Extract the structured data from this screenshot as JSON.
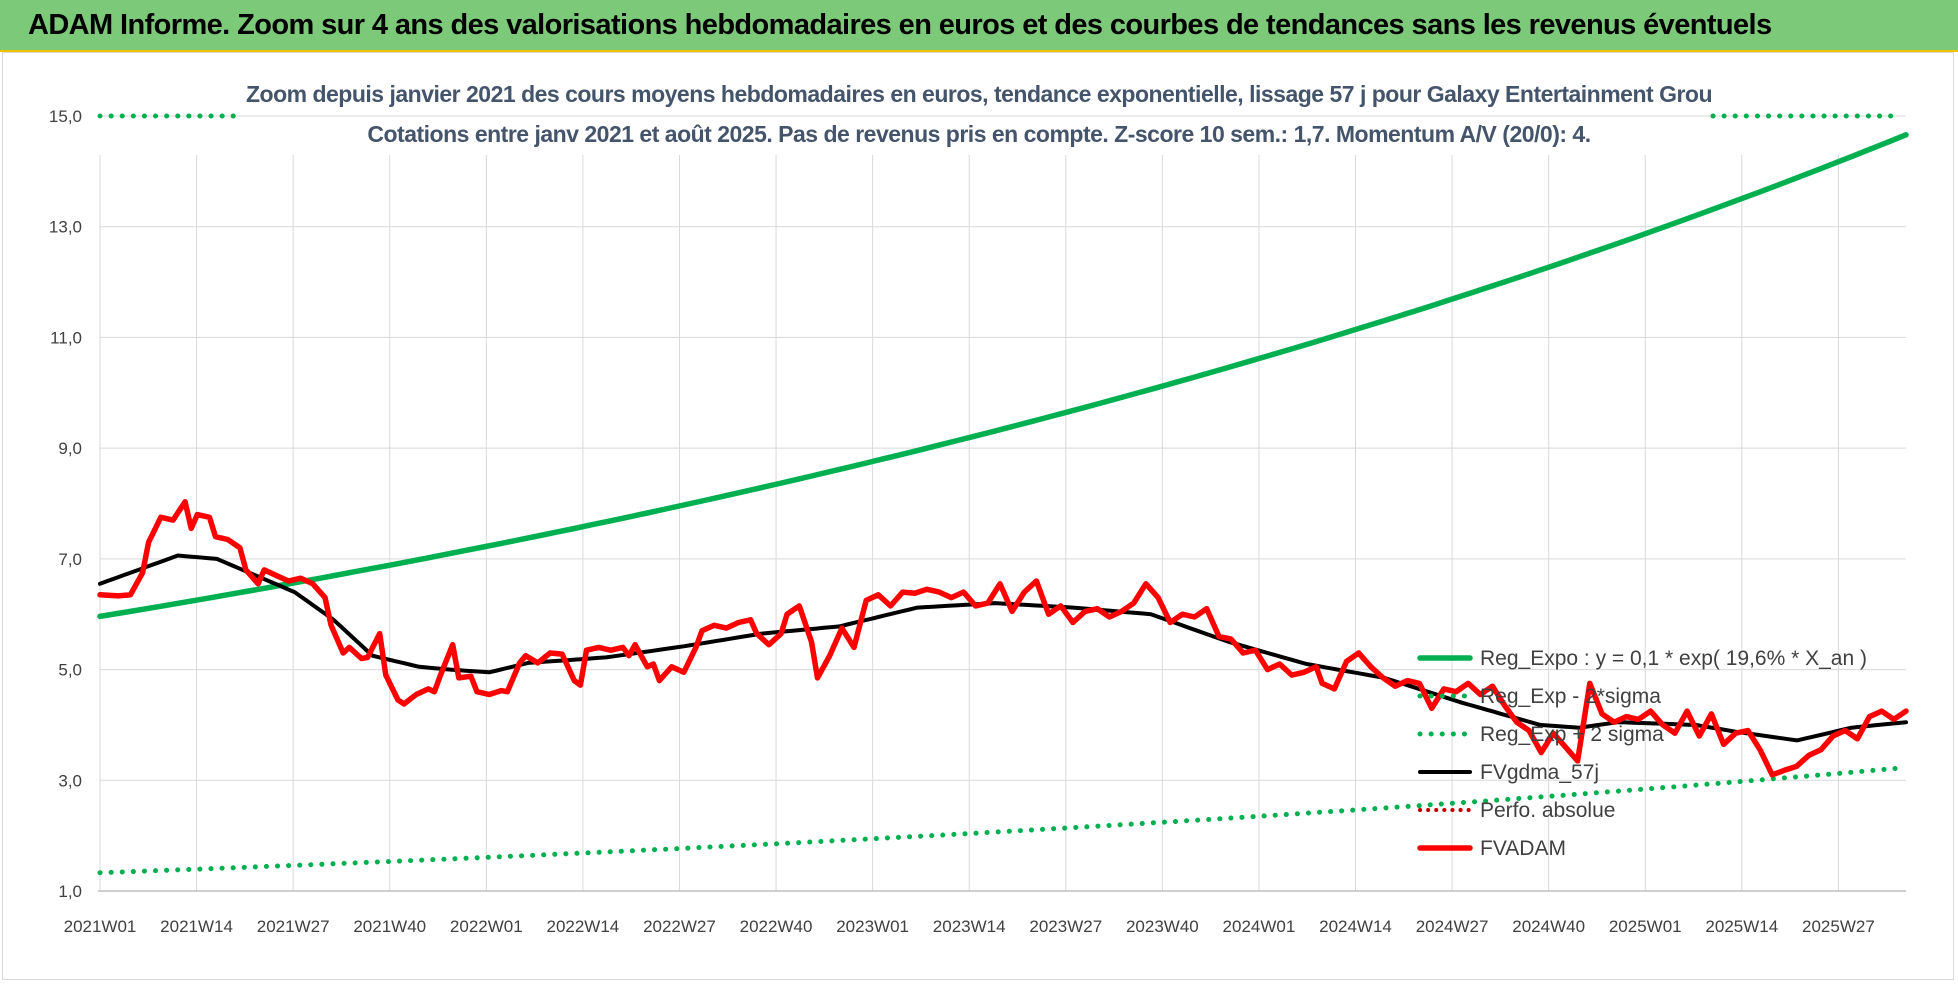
{
  "header": {
    "title": "ADAM Informe. Zoom sur 4 ans des valorisations hebdomadaires en euros et des courbes de tendances sans les revenus éventuels"
  },
  "chart_data": {
    "type": "line",
    "title": "Zoom depuis janvier 2021 des cours moyens hebdomadaires en euros, tendance exponentielle, lissage 57 j pour Galaxy Entertainment Grou",
    "subtitle": "Cotations entre janv 2021 et août 2025.  Pas de revenus pris en compte.  Z-score 10 sem.: 1,7.  Momentum A/V (20/0): 4.",
    "xlabel": "",
    "ylabel": "",
    "ylim": [
      1,
      15
    ],
    "yticks": [
      "1,0",
      "3,0",
      "5,0",
      "7,0",
      "9,0",
      "11,0",
      "13,0",
      "15,0"
    ],
    "xticks": [
      "2021W01",
      "2021W14",
      "2021W27",
      "2021W40",
      "2022W01",
      "2022W14",
      "2022W27",
      "2022W40",
      "2023W01",
      "2023W14",
      "2023W27",
      "2023W40",
      "2024W01",
      "2024W14",
      "2024W27",
      "2024W40",
      "2025W01",
      "2025W14",
      "2025W27"
    ],
    "week_count": 192,
    "grid": "vertical",
    "legend_position": "bottom-right",
    "colors": {
      "green": "#00b050",
      "black": "#000000",
      "red": "#ff0000",
      "dotted_red": "#c00000"
    },
    "series": [
      {
        "name": "Reg_Expo : y = 0,1 * exp( 19,6% *  X_an )",
        "style": "solid-green",
        "keypoints": [
          [
            0,
            5.96
          ],
          [
            40,
            6.85
          ],
          [
            80,
            7.86
          ],
          [
            120,
            9.02
          ],
          [
            160,
            10.38
          ],
          [
            191,
            14.66
          ]
        ]
      },
      {
        "name": "Reg_Exp - 2*sigma",
        "style": "dotted-green",
        "keypoints": [
          [
            0,
            1.33
          ],
          [
            60,
            1.55
          ],
          [
            120,
            2.0
          ],
          [
            160,
            2.5
          ],
          [
            191,
            3.23
          ]
        ]
      },
      {
        "name": "Reg_Exp + 2 sigma",
        "style": "dotted-green",
        "keypoints": [
          [
            0,
            15.0
          ],
          [
            191,
            15.0
          ]
        ]
      },
      {
        "name": "FVgdma_57j",
        "style": "solid-black",
        "keypoints": [
          [
            0,
            6.55
          ],
          [
            10,
            7.06
          ],
          [
            15,
            7.0
          ],
          [
            25,
            6.4
          ],
          [
            30,
            5.9
          ],
          [
            35,
            5.25
          ],
          [
            41,
            5.05
          ],
          [
            45,
            5.0
          ],
          [
            50,
            4.95
          ],
          [
            55,
            5.12
          ],
          [
            65,
            5.22
          ],
          [
            75,
            5.42
          ],
          [
            85,
            5.65
          ],
          [
            95,
            5.78
          ],
          [
            105,
            6.12
          ],
          [
            115,
            6.2
          ],
          [
            125,
            6.12
          ],
          [
            135,
            6.0
          ],
          [
            145,
            5.5
          ],
          [
            155,
            5.1
          ],
          [
            165,
            4.85
          ],
          [
            175,
            4.4
          ],
          [
            185,
            4.0
          ],
          [
            190,
            3.95
          ],
          [
            195,
            4.05
          ],
          [
            205,
            4.0
          ],
          [
            210,
            3.88
          ],
          [
            218,
            3.72
          ],
          [
            225,
            3.95
          ],
          [
            232,
            4.05
          ]
        ]
      },
      {
        "name": "Perfo. absolue",
        "style": "dotted-red",
        "keypoints": []
      },
      {
        "name": "FVADAM",
        "style": "solid-red",
        "keypoints": [
          [
            0,
            6.35
          ],
          [
            3,
            6.33
          ],
          [
            5,
            6.35
          ],
          [
            7,
            6.75
          ],
          [
            8,
            7.3
          ],
          [
            10,
            7.75
          ],
          [
            12,
            7.7
          ],
          [
            14,
            8.03
          ],
          [
            15,
            7.55
          ],
          [
            16,
            7.8
          ],
          [
            18,
            7.75
          ],
          [
            19,
            7.4
          ],
          [
            21,
            7.35
          ],
          [
            23,
            7.2
          ],
          [
            24,
            6.8
          ],
          [
            26,
            6.55
          ],
          [
            27,
            6.8
          ],
          [
            29,
            6.7
          ],
          [
            31,
            6.6
          ],
          [
            33,
            6.65
          ],
          [
            35,
            6.55
          ],
          [
            37,
            6.3
          ],
          [
            38,
            5.8
          ],
          [
            40,
            5.3
          ],
          [
            41,
            5.4
          ],
          [
            43,
            5.2
          ],
          [
            44,
            5.22
          ],
          [
            46,
            5.65
          ],
          [
            47,
            4.9
          ],
          [
            49,
            4.45
          ],
          [
            50,
            4.38
          ],
          [
            52,
            4.55
          ],
          [
            54,
            4.65
          ],
          [
            55,
            4.6
          ],
          [
            56,
            4.9
          ],
          [
            58,
            5.45
          ],
          [
            59,
            4.85
          ],
          [
            61,
            4.88
          ],
          [
            62,
            4.6
          ],
          [
            64,
            4.55
          ],
          [
            66,
            4.62
          ],
          [
            67,
            4.6
          ],
          [
            69,
            5.12
          ],
          [
            70,
            5.25
          ],
          [
            72,
            5.12
          ],
          [
            74,
            5.3
          ],
          [
            76,
            5.28
          ],
          [
            78,
            4.8
          ],
          [
            79,
            4.72
          ],
          [
            80,
            5.35
          ],
          [
            82,
            5.4
          ],
          [
            84,
            5.35
          ],
          [
            86,
            5.4
          ],
          [
            87,
            5.25
          ],
          [
            88,
            5.45
          ],
          [
            90,
            5.05
          ],
          [
            91,
            5.1
          ],
          [
            92,
            4.8
          ],
          [
            94,
            5.05
          ],
          [
            96,
            4.95
          ],
          [
            98,
            5.4
          ],
          [
            99,
            5.7
          ],
          [
            101,
            5.8
          ],
          [
            103,
            5.75
          ],
          [
            105,
            5.85
          ],
          [
            107,
            5.9
          ],
          [
            108,
            5.65
          ],
          [
            110,
            5.45
          ],
          [
            112,
            5.65
          ],
          [
            113,
            6.0
          ],
          [
            115,
            6.15
          ],
          [
            117,
            5.5
          ],
          [
            118,
            4.85
          ],
          [
            120,
            5.25
          ],
          [
            122,
            5.75
          ],
          [
            124,
            5.4
          ],
          [
            126,
            6.25
          ],
          [
            128,
            6.35
          ],
          [
            130,
            6.15
          ],
          [
            132,
            6.4
          ],
          [
            134,
            6.38
          ],
          [
            136,
            6.45
          ],
          [
            138,
            6.4
          ],
          [
            140,
            6.3
          ],
          [
            142,
            6.4
          ],
          [
            144,
            6.15
          ],
          [
            146,
            6.2
          ],
          [
            148,
            6.55
          ],
          [
            150,
            6.05
          ],
          [
            152,
            6.4
          ],
          [
            154,
            6.6
          ],
          [
            156,
            6.0
          ],
          [
            158,
            6.15
          ],
          [
            160,
            5.85
          ],
          [
            162,
            6.05
          ],
          [
            164,
            6.1
          ],
          [
            166,
            5.95
          ],
          [
            168,
            6.05
          ],
          [
            170,
            6.2
          ],
          [
            172,
            6.55
          ],
          [
            174,
            6.3
          ],
          [
            176,
            5.85
          ],
          [
            178,
            6.0
          ],
          [
            180,
            5.95
          ],
          [
            182,
            6.1
          ],
          [
            184,
            5.6
          ],
          [
            186,
            5.55
          ],
          [
            188,
            5.3
          ],
          [
            190,
            5.35
          ],
          [
            192,
            5.0
          ],
          [
            194,
            5.1
          ],
          [
            196,
            4.9
          ],
          [
            198,
            4.95
          ],
          [
            200,
            5.05
          ],
          [
            201,
            4.75
          ],
          [
            203,
            4.65
          ],
          [
            205,
            5.15
          ],
          [
            207,
            5.3
          ],
          [
            209,
            5.05
          ],
          [
            211,
            4.85
          ],
          [
            213,
            4.7
          ],
          [
            215,
            4.8
          ],
          [
            217,
            4.75
          ],
          [
            219,
            4.3
          ],
          [
            221,
            4.65
          ],
          [
            223,
            4.6
          ],
          [
            225,
            4.75
          ],
          [
            227,
            4.55
          ],
          [
            229,
            4.7
          ],
          [
            231,
            4.35
          ],
          [
            233,
            4.05
          ],
          [
            235,
            3.9
          ],
          [
            237,
            3.5
          ],
          [
            239,
            3.85
          ],
          [
            241,
            3.6
          ],
          [
            243,
            3.35
          ],
          [
            245,
            4.75
          ],
          [
            247,
            4.2
          ],
          [
            249,
            4.05
          ],
          [
            251,
            4.15
          ],
          [
            253,
            4.1
          ],
          [
            255,
            4.25
          ],
          [
            257,
            4.0
          ],
          [
            259,
            3.85
          ],
          [
            261,
            4.25
          ],
          [
            263,
            3.8
          ],
          [
            265,
            4.2
          ],
          [
            267,
            3.65
          ],
          [
            269,
            3.85
          ],
          [
            271,
            3.9
          ],
          [
            273,
            3.55
          ],
          [
            275,
            3.1
          ],
          [
            277,
            3.18
          ],
          [
            279,
            3.25
          ],
          [
            281,
            3.45
          ],
          [
            283,
            3.55
          ],
          [
            285,
            3.8
          ],
          [
            287,
            3.9
          ],
          [
            289,
            3.75
          ],
          [
            291,
            4.15
          ],
          [
            293,
            4.25
          ],
          [
            295,
            4.1
          ],
          [
            297,
            4.25
          ]
        ]
      }
    ]
  }
}
